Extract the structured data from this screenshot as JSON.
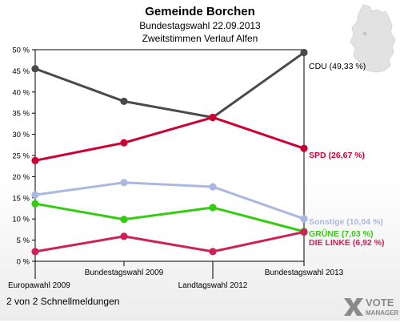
{
  "chart_data": {
    "type": "line",
    "title": "Gemeinde Borchen",
    "subtitle_lines": [
      "Bundestagswahl 22.09.2013",
      "Zweitstimmen Verlauf Alfen"
    ],
    "categories": [
      "Europawahl 2009",
      "Bundestagswahl 2009",
      "Landtagswahl 2012",
      "Bundestagswahl 2013"
    ],
    "ylim": [
      0,
      50
    ],
    "yticks": [
      0,
      5,
      10,
      15,
      20,
      25,
      30,
      35,
      40,
      45,
      50
    ],
    "ytick_labels": [
      "0 %",
      "5 %",
      "10 %",
      "15 %",
      "20 %",
      "25 %",
      "30 %",
      "35 %",
      "40 %",
      "45 %",
      "50 %"
    ],
    "grid": false,
    "series": [
      {
        "name": "CDU",
        "end_label": "CDU (49,33 %)",
        "color": "#4a4a4a",
        "values": [
          45.5,
          37.8,
          34.0,
          49.33
        ]
      },
      {
        "name": "SPD",
        "end_label": "SPD (26,67 %)",
        "color": "#cc0033",
        "values": [
          23.8,
          28.0,
          34.0,
          26.67
        ]
      },
      {
        "name": "Sonstige",
        "end_label": "Sonstige (10,04 %)",
        "color": "#aab8e0",
        "values": [
          15.7,
          18.6,
          17.6,
          10.04
        ]
      },
      {
        "name": "GRÜNE",
        "end_label": "GRÜNE (7,03 %)",
        "color": "#33cc11",
        "values": [
          13.6,
          9.9,
          12.7,
          7.03
        ]
      },
      {
        "name": "DIE LINKE",
        "end_label": "DIE LINKE (6,92 %)",
        "color": "#cc2255",
        "values": [
          2.3,
          5.9,
          2.3,
          6.92
        ]
      }
    ]
  },
  "footer": {
    "text": "2 von 2 Schnellmeldungen"
  },
  "logo": {
    "line1": "VOTE",
    "line2": "MANAGER"
  }
}
